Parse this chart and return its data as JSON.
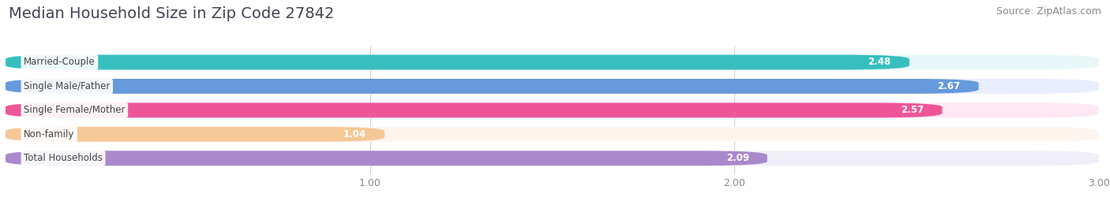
{
  "title": "Median Household Size in Zip Code 27842",
  "source": "Source: ZipAtlas.com",
  "categories": [
    "Married-Couple",
    "Single Male/Father",
    "Single Female/Mother",
    "Non-family",
    "Total Households"
  ],
  "values": [
    2.48,
    2.67,
    2.57,
    1.04,
    2.09
  ],
  "bar_colors": [
    "#36bfbe",
    "#6699dd",
    "#ee5599",
    "#f5c896",
    "#aa88cc"
  ],
  "background_colors": [
    "#e8f8f8",
    "#e8eeff",
    "#fde8f3",
    "#fdf5ee",
    "#f0eef8"
  ],
  "xlim": [
    0,
    3.0
  ],
  "xticks": [
    1.0,
    2.0,
    3.0
  ],
  "title_fontsize": 14,
  "source_fontsize": 9,
  "label_fontsize": 8.5,
  "value_fontsize": 8.5,
  "bar_height": 0.62,
  "fig_width": 14.06,
  "fig_height": 2.69,
  "bg_color": "#ffffff"
}
